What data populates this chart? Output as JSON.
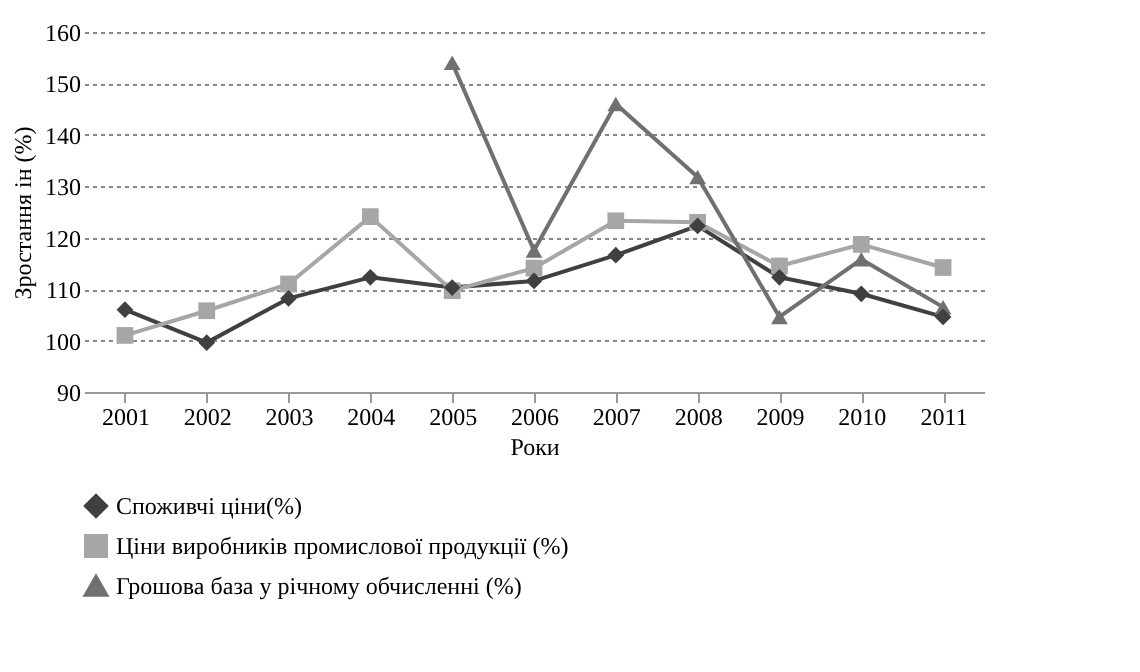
{
  "chart_data": {
    "type": "line",
    "xlabel": "Роки",
    "ylabel": "Зростання ін (%)",
    "categories": [
      "2001",
      "2002",
      "2003",
      "2004",
      "2005",
      "2006",
      "2007",
      "2008",
      "2009",
      "2010",
      "2011"
    ],
    "series": [
      {
        "name": "Споживчі ціни(%)",
        "color": "#404040",
        "marker": "diamond",
        "values": [
          106,
          99.6,
          108.2,
          112.3,
          110.3,
          111.6,
          116.6,
          122.3,
          112.3,
          109.1,
          104.6
        ]
      },
      {
        "name": "Ціни  виробників промислової продукції (%)",
        "color": "#a6a6a6",
        "marker": "square",
        "values": [
          101,
          105.8,
          111,
          124.1,
          109.7,
          114.1,
          123.3,
          123,
          114.5,
          118.7,
          114.2
        ]
      },
      {
        "name": "Грошова база  у річному обчисленні (%)",
        "color": "#707070",
        "marker": "triangle",
        "values": [
          null,
          null,
          null,
          null,
          154,
          117.5,
          146,
          131.8,
          104.6,
          115.8,
          106.5
        ]
      }
    ],
    "ylim": [
      90,
      160
    ],
    "yticks": [
      90,
      100,
      110,
      120,
      130,
      140,
      150,
      160
    ],
    "grid": "y",
    "legend": "bottom",
    "line_style": "solid"
  }
}
